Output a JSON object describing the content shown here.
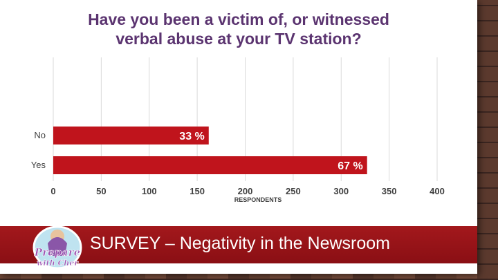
{
  "title_line1": "Have you been a victim of, or witnessed",
  "title_line2": "verbal abuse at your TV station?",
  "banner": "SURVEY – Negativity in the Newsroom",
  "logo": {
    "line1": "Prepare",
    "line2": "with Cher"
  },
  "colors": {
    "bar": "#c0141c",
    "title": "#5b3470",
    "banner": "#9a1419"
  },
  "chart_data": {
    "type": "bar",
    "orientation": "horizontal",
    "categories": [
      "No",
      "Yes"
    ],
    "values": [
      162,
      327
    ],
    "data_labels": [
      "33 %",
      "67 %"
    ],
    "xlabel": "RESPONDENTS",
    "ylabel": "",
    "xlim": [
      0,
      400
    ],
    "xticks": [
      0,
      50,
      100,
      150,
      200,
      250,
      300,
      350,
      400
    ],
    "grid": true
  }
}
